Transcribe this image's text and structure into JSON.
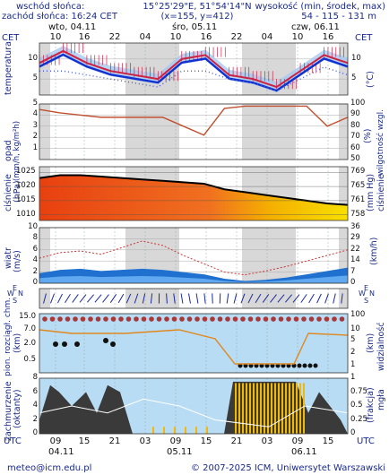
{
  "header": {
    "sunrise": "wschód słońca:",
    "sunset": "zachód słońca: 16:24 CET",
    "coords": "15°25'29\"E, 51°54'14\"N",
    "grid": "(x=155, y=412)",
    "elev_label": "wysokość (min, środek, max)",
    "elev_values": "54 - 115 - 131 m"
  },
  "timezone": "CET",
  "day_labels": [
    "wto, 04.11",
    "śro, 05.11",
    "czw, 06.11"
  ],
  "top_hours": [
    "10",
    "16",
    "22",
    "04",
    "10",
    "16",
    "22",
    "04",
    "10",
    "16"
  ],
  "bottom_hours": [
    "09",
    "15",
    "21",
    "03",
    "09",
    "15",
    "21",
    "03",
    "09",
    "15"
  ],
  "bottom_dates": [
    "04.11",
    "05.11",
    "06.11"
  ],
  "utc": "UTC",
  "footer": {
    "email": "meteo@icm.edu.pl",
    "copyright": "© 2007-2025 ICM, Uniwersytet Warszawski"
  },
  "colors": {
    "temp_line": "#1030d0",
    "temp_band": "#cc2244",
    "precip_line": "#c05030",
    "pressure_line": "#000000",
    "wind_fill": "#2070d0",
    "gust_line": "#cc3333",
    "cloud_fill": "#3a3a3a",
    "fog_bar": "#f5b800",
    "night_bg": "#d0d0d0",
    "sky_bg": "#b8dcf4"
  },
  "chart_data": [
    {
      "type": "line",
      "name": "temperatura",
      "ylabel": "temperatura",
      "yunit": "(°C)",
      "ylim": [
        1,
        14
      ],
      "yticks": [
        "10",
        "5"
      ],
      "x_hours": [
        0,
        6,
        12,
        18,
        24,
        30,
        36,
        42,
        48,
        54,
        60,
        66,
        72,
        78
      ],
      "temperature": [
        9,
        12,
        9,
        7,
        6,
        5,
        10,
        11,
        6,
        5,
        3,
        7,
        11,
        9
      ],
      "dewpoint": [
        7,
        7,
        6,
        5,
        4,
        3,
        7,
        7,
        5,
        4,
        2,
        5,
        8,
        6
      ]
    },
    {
      "type": "line",
      "name": "opad",
      "ylabel": "opad",
      "yunit": "(mm/h, kg/m²h)",
      "ylabel2": "wilgotność wzgl.",
      "yunit2": "(%)",
      "ylim": [
        0,
        5
      ],
      "ylim2": [
        50,
        100
      ],
      "yticks": [
        "5",
        "4",
        "3",
        "2",
        "1"
      ],
      "yticks2": [
        "100",
        "90",
        "80",
        "70",
        "60",
        "50"
      ],
      "humidity": [
        95,
        92,
        90,
        88,
        88,
        88,
        88,
        80,
        72,
        96,
        98,
        98,
        98,
        98,
        80,
        88
      ],
      "precip": [
        0,
        0,
        0,
        0,
        0,
        0,
        0,
        0,
        0,
        0,
        0,
        0,
        0,
        0,
        0,
        0
      ]
    },
    {
      "type": "area",
      "name": "ciśnienie",
      "ylabel": "ciśnienie",
      "yunit": "(hPa)",
      "ylabel2": "ciśnienie",
      "yunit2": "(mm Hg)",
      "ylim": [
        1008,
        1027
      ],
      "yticks": [
        "1025",
        "1020",
        "1015",
        "1010"
      ],
      "yticks2": [
        "769",
        "765",
        "761",
        "758"
      ],
      "pressure": [
        1023,
        1024,
        1024,
        1023.5,
        1023,
        1022.5,
        1022,
        1021.5,
        1021,
        1019,
        1018,
        1017,
        1016,
        1015,
        1014,
        1013.5
      ]
    },
    {
      "type": "area",
      "name": "wiatr",
      "ylabel": "wiatr",
      "yunit": "(m/s)",
      "yunit2": "(km/h)",
      "ylim": [
        0,
        10
      ],
      "yticks": [
        "10",
        "8",
        "6",
        "4",
        "2",
        "0"
      ],
      "yticks2": [
        "36",
        "29",
        "22",
        "14",
        "7",
        "0"
      ],
      "wind": [
        1.8,
        2.4,
        2.6,
        2.2,
        2.4,
        2.6,
        2.4,
        2.0,
        1.6,
        0.8,
        0.4,
        0.6,
        1.0,
        1.6,
        2.2,
        2.8
      ],
      "gust": [
        4.5,
        5.5,
        5.8,
        5.2,
        6.4,
        7.6,
        6.8,
        5.0,
        3.5,
        2.0,
        1.5,
        2.2,
        3.0,
        4.0,
        5.0,
        6.0
      ]
    },
    {
      "type": "scatter",
      "name": "kierunek",
      "ylabel": "W S E N",
      "compass": [
        "N",
        "E",
        "S",
        "W"
      ]
    },
    {
      "type": "scatter",
      "name": "zachmurzenie",
      "ylabel": "pion. rozciągł. chm.",
      "yunit": "(km)",
      "ylabel2": "widzialność",
      "yunit2": "(km)",
      "ylim": [
        0,
        15
      ],
      "yticks": [
        "15.0",
        "7.0",
        "2.0",
        "0.5"
      ],
      "yticks2": [
        "100",
        "10",
        "5",
        "2",
        "1"
      ]
    },
    {
      "type": "area",
      "name": "mgła",
      "ylabel": "zachmurzenie",
      "yunit": "(oktanty)",
      "ylabel2": "(frakcja)",
      "yunit2": "mgła",
      "ylim": [
        0,
        8
      ],
      "yticks": [
        "8",
        "6",
        "4",
        "2",
        "0"
      ],
      "yticks2": [
        "1",
        "0.75",
        "0.5",
        "0.25",
        "0"
      ]
    }
  ]
}
